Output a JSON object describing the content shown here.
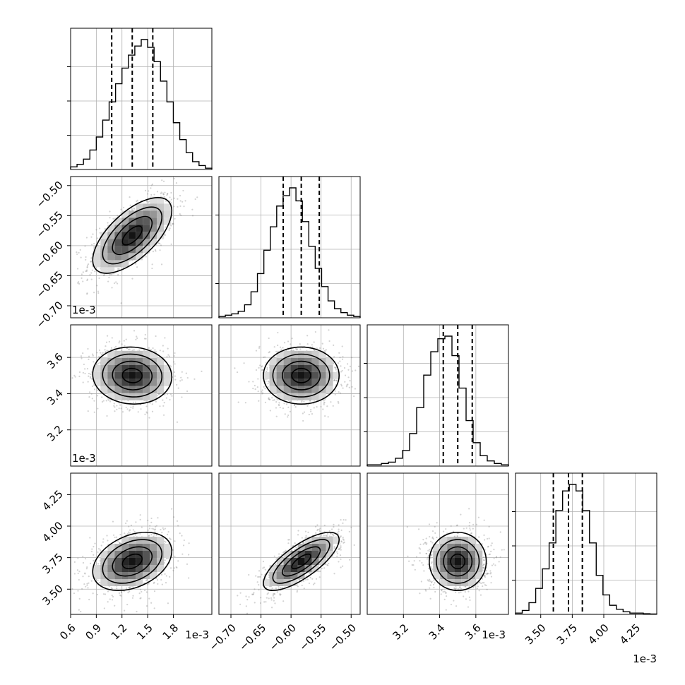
{
  "chart_data": {
    "type": "corner",
    "colors": {
      "line": "#000000",
      "grid": "#b0b0b0",
      "points": "#808080"
    },
    "grid": true,
    "parameters": [
      {
        "index": 0,
        "range": [
          0.6,
          2.25
        ],
        "ticks": [
          "0.6",
          "0.9",
          "1.2",
          "1.5",
          "1.8"
        ],
        "tick_values": [
          0.6,
          0.9,
          1.2,
          1.5,
          1.8
        ],
        "offset": "1e-3",
        "quantiles": [
          1.08,
          1.32,
          1.56
        ]
      },
      {
        "index": 1,
        "range": [
          -0.72,
          -0.485
        ],
        "ticks": [
          "−0.70",
          "−0.65",
          "−0.60",
          "−0.55",
          "−0.50"
        ],
        "tick_values": [
          -0.7,
          -0.65,
          -0.6,
          -0.55,
          -0.5
        ],
        "offset": "1e-3",
        "quantiles": [
          -0.613,
          -0.583,
          -0.553
        ]
      },
      {
        "index": 2,
        "range": [
          3.0,
          3.78
        ],
        "ticks": [
          "3.2",
          "3.4",
          "3.6"
        ],
        "tick_values": [
          3.2,
          3.4,
          3.6
        ],
        "offset": "1e-3",
        "quantiles": [
          3.42,
          3.5,
          3.58
        ]
      },
      {
        "index": 3,
        "range": [
          3.3,
          4.42
        ],
        "ticks": [
          "3.50",
          "3.75",
          "4.00",
          "4.25"
        ],
        "tick_values": [
          3.5,
          3.75,
          4.0,
          4.25
        ],
        "offset": "1e-3",
        "quantiles": [
          3.6,
          3.72,
          3.83
        ]
      }
    ],
    "histograms": [
      {
        "param": 0,
        "values": [
          0.02,
          0.04,
          0.08,
          0.15,
          0.25,
          0.38,
          0.52,
          0.66,
          0.78,
          0.88,
          0.95,
          1.0,
          0.94,
          0.83,
          0.68,
          0.52,
          0.36,
          0.23,
          0.13,
          0.06,
          0.03,
          0.01
        ]
      },
      {
        "param": 1,
        "values": [
          0.01,
          0.02,
          0.03,
          0.05,
          0.1,
          0.2,
          0.34,
          0.52,
          0.7,
          0.86,
          0.94,
          1.0,
          0.9,
          0.74,
          0.55,
          0.38,
          0.24,
          0.13,
          0.07,
          0.04,
          0.02,
          0.01
        ]
      },
      {
        "param": 2,
        "values": [
          0.01,
          0.01,
          0.02,
          0.03,
          0.06,
          0.12,
          0.25,
          0.45,
          0.7,
          0.88,
          0.98,
          1.0,
          0.85,
          0.6,
          0.35,
          0.18,
          0.08,
          0.04,
          0.02,
          0.01
        ]
      },
      {
        "param": 3,
        "values": [
          0.01,
          0.03,
          0.09,
          0.2,
          0.35,
          0.55,
          0.8,
          0.95,
          1.0,
          0.95,
          0.8,
          0.55,
          0.3,
          0.15,
          0.07,
          0.04,
          0.02,
          0.01,
          0.01,
          0.005,
          0.003
        ]
      }
    ],
    "pairs": [
      {
        "x_param": 0,
        "y_param": 1,
        "mean": [
          1.32,
          -0.583
        ],
        "std": [
          0.22,
          0.03
        ],
        "corr": 0.65
      },
      {
        "x_param": 0,
        "y_param": 2,
        "mean": [
          1.32,
          3.5
        ],
        "std": [
          0.22,
          0.075
        ],
        "corr": -0.05
      },
      {
        "x_param": 1,
        "y_param": 2,
        "mean": [
          -0.583,
          3.5
        ],
        "std": [
          0.03,
          0.075
        ],
        "corr": 0.0
      },
      {
        "x_param": 0,
        "y_param": 3,
        "mean": [
          1.32,
          3.72
        ],
        "std": [
          0.22,
          0.11
        ],
        "corr": 0.35
      },
      {
        "x_param": 1,
        "y_param": 3,
        "mean": [
          -0.583,
          3.72
        ],
        "std": [
          0.03,
          0.11
        ],
        "corr": 0.75
      },
      {
        "x_param": 2,
        "y_param": 3,
        "mean": [
          3.5,
          3.72
        ],
        "std": [
          0.075,
          0.11
        ],
        "corr": 0.0
      }
    ],
    "contour_levels_sigma": [
      0.5,
      1.0,
      1.5,
      2.0
    ]
  }
}
